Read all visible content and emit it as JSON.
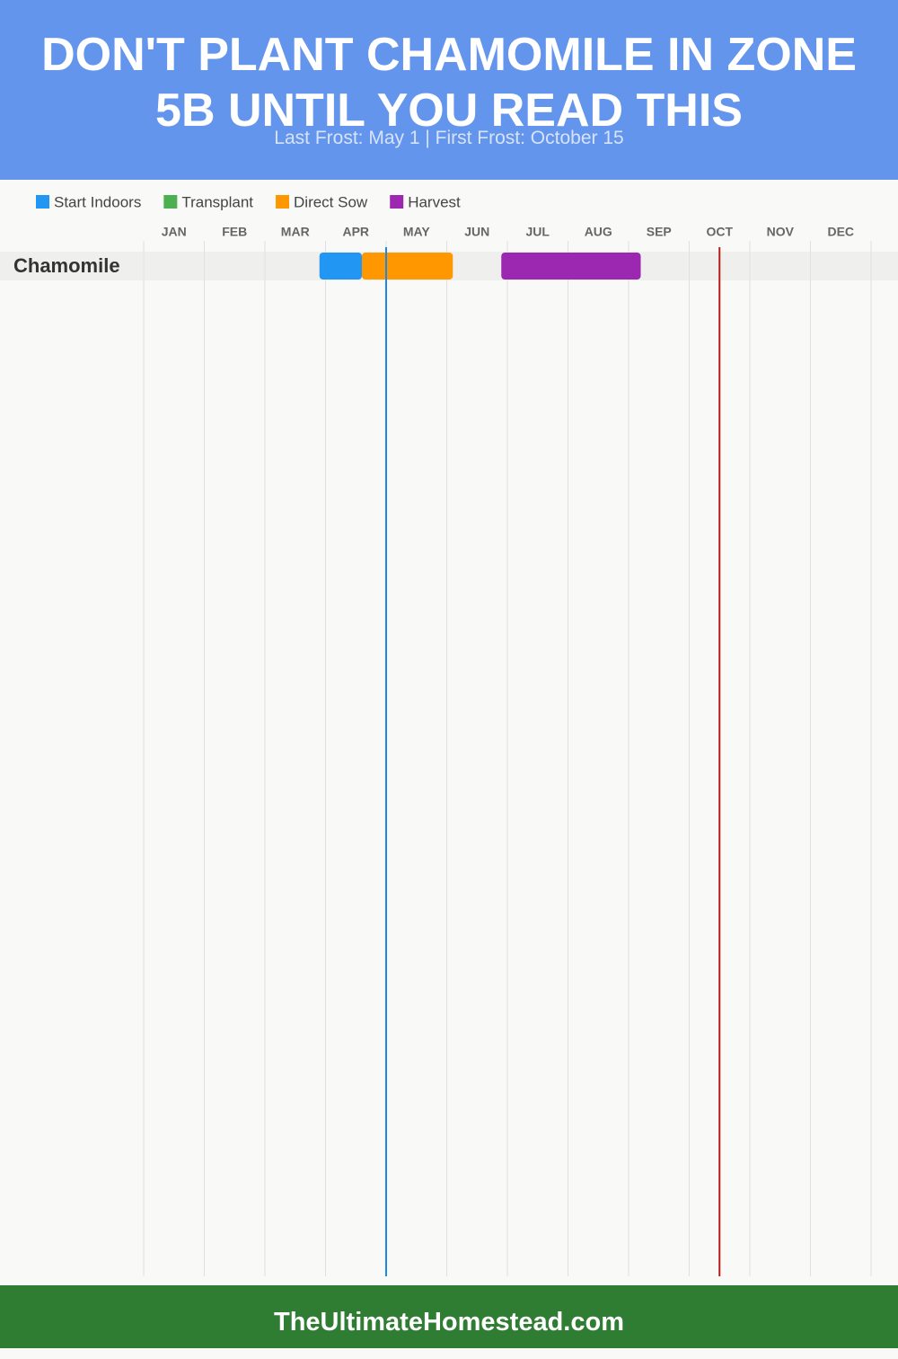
{
  "chart_data": {
    "type": "gantt",
    "title": "DON'T PLANT CHAMOMILE IN ZONE 5B UNTIL YOU READ THIS",
    "subtitle": "Last Frost: May 1 | First Frost: October 15",
    "footer": "TheUltimateHomestead.com",
    "months": [
      "JAN",
      "FEB",
      "MAR",
      "APR",
      "MAY",
      "JUN",
      "JUL",
      "AUG",
      "SEP",
      "OCT",
      "NOV",
      "DEC"
    ],
    "xlim": [
      0,
      12
    ],
    "categories": [
      "Chamomile"
    ],
    "series": [
      {
        "name": "Start Indoors",
        "color": "#2196f3",
        "values": [
          [
            2.9,
            3.6
          ]
        ]
      },
      {
        "name": "Transplant",
        "color": "#4caf50",
        "values": [
          null
        ]
      },
      {
        "name": "Direct Sow",
        "color": "#ff9800",
        "values": [
          [
            3.6,
            5.1
          ]
        ]
      },
      {
        "name": "Harvest",
        "color": "#9c27b0",
        "values": [
          [
            5.9,
            8.2
          ]
        ]
      }
    ],
    "frost_lines": [
      {
        "value": 4.0,
        "color": "#1e88e5"
      },
      {
        "value": 9.5,
        "color": "#b71c1c"
      }
    ]
  }
}
